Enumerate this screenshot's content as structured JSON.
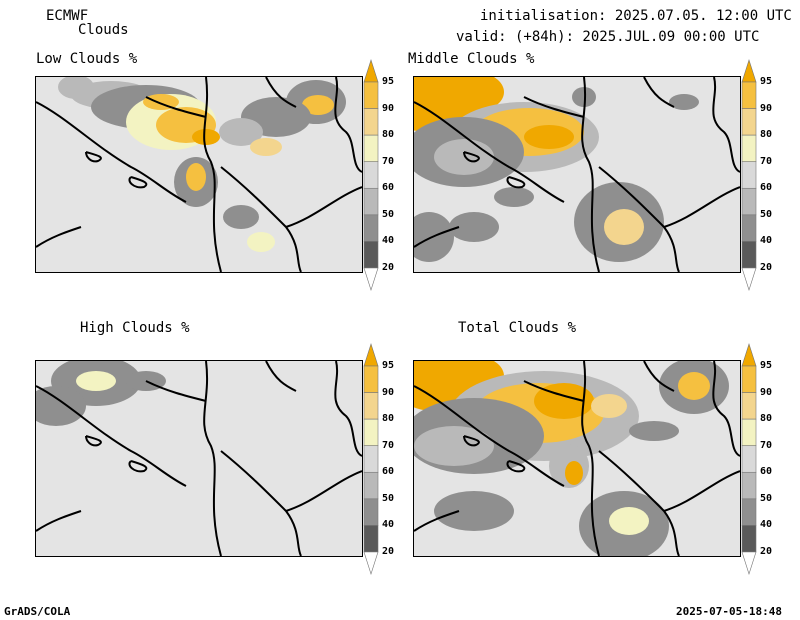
{
  "header": {
    "model": "ECMWF",
    "product": "Clouds",
    "init": "initialisation: 2025.07.05. 12:00 UTC",
    "valid": "valid: (+84h): 2025.JUL.09 00:00 UTC"
  },
  "panels": [
    {
      "title": "Low Clouds %"
    },
    {
      "title": "Middle Clouds %"
    },
    {
      "title": "High Clouds %"
    },
    {
      "title": "Total Clouds %"
    }
  ],
  "colorbar": {
    "levels": [
      "95",
      "90",
      "80",
      "70",
      "60",
      "50",
      "40",
      "20"
    ],
    "colors": [
      "#f0a800",
      "#f5c040",
      "#f3d58e",
      "#f3f3c2",
      "#d9d9d9",
      "#b9b9b9",
      "#8f8f8f",
      "#5a5a5a",
      "#ffffff"
    ]
  },
  "footer": {
    "left": "GrADS/COLA",
    "right": "2025-07-05-18:48"
  }
}
